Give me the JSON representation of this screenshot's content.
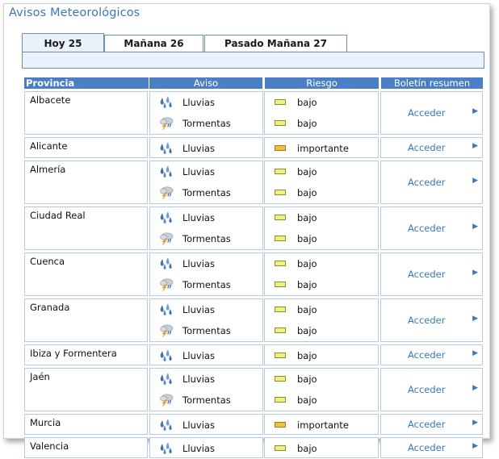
{
  "page": {
    "title": "Avisos Meteorológicos"
  },
  "tabs": [
    {
      "label": "Hoy 25",
      "active": true
    },
    {
      "label": "Mañana 26",
      "active": false
    },
    {
      "label": "Pasado Mañana 27",
      "active": false
    }
  ],
  "table": {
    "headers": {
      "provincia": "Provincia",
      "aviso": "Aviso",
      "riesgo": "Riesgo",
      "boletin": "Boletín resumen"
    },
    "link_label": "Acceder",
    "rows": [
      {
        "provincia": "Albacete",
        "avisos": [
          {
            "tipo": "Lluvias",
            "icon": "rain-icon",
            "riesgo": "bajo"
          },
          {
            "tipo": "Tormentas",
            "icon": "storm-icon",
            "riesgo": "bajo"
          }
        ]
      },
      {
        "provincia": "Alicante",
        "avisos": [
          {
            "tipo": "Lluvias",
            "icon": "rain-icon",
            "riesgo": "importante"
          }
        ]
      },
      {
        "provincia": "Almería",
        "avisos": [
          {
            "tipo": "Lluvias",
            "icon": "rain-icon",
            "riesgo": "bajo"
          },
          {
            "tipo": "Tormentas",
            "icon": "storm-icon",
            "riesgo": "bajo"
          }
        ]
      },
      {
        "provincia": "Ciudad Real",
        "avisos": [
          {
            "tipo": "Lluvias",
            "icon": "rain-icon",
            "riesgo": "bajo"
          },
          {
            "tipo": "Tormentas",
            "icon": "storm-icon",
            "riesgo": "bajo"
          }
        ]
      },
      {
        "provincia": "Cuenca",
        "avisos": [
          {
            "tipo": "Lluvias",
            "icon": "rain-icon",
            "riesgo": "bajo"
          },
          {
            "tipo": "Tormentas",
            "icon": "storm-icon",
            "riesgo": "bajo"
          }
        ]
      },
      {
        "provincia": "Granada",
        "avisos": [
          {
            "tipo": "Lluvias",
            "icon": "rain-icon",
            "riesgo": "bajo"
          },
          {
            "tipo": "Tormentas",
            "icon": "storm-icon",
            "riesgo": "bajo"
          }
        ]
      },
      {
        "provincia": "Ibiza y Formentera",
        "avisos": [
          {
            "tipo": "Lluvias",
            "icon": "rain-icon",
            "riesgo": "bajo"
          }
        ]
      },
      {
        "provincia": "Jaén",
        "avisos": [
          {
            "tipo": "Lluvias",
            "icon": "rain-icon",
            "riesgo": "bajo"
          },
          {
            "tipo": "Tormentas",
            "icon": "storm-icon",
            "riesgo": "bajo"
          }
        ]
      },
      {
        "provincia": "Murcia",
        "avisos": [
          {
            "tipo": "Lluvias",
            "icon": "rain-icon",
            "riesgo": "importante"
          }
        ]
      },
      {
        "provincia": "Valencia",
        "avisos": [
          {
            "tipo": "Lluvias",
            "icon": "rain-icon",
            "riesgo": "bajo"
          }
        ]
      }
    ]
  },
  "colors": {
    "accent": "#3b78b8",
    "header_bg": "#4a7fc7",
    "risk_bajo": "#eef27a",
    "risk_importante": "#f0c23a"
  }
}
